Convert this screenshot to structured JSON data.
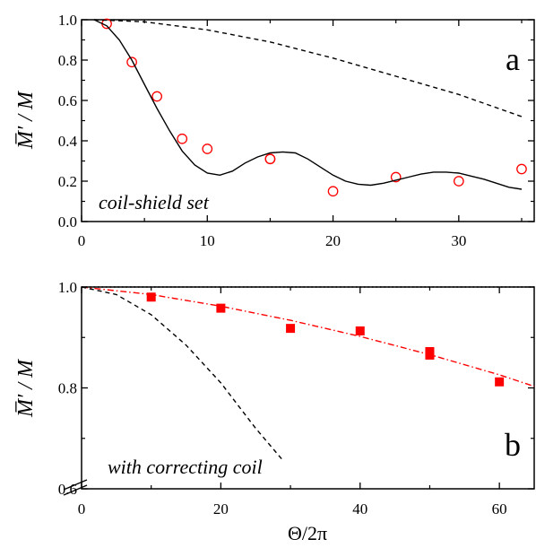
{
  "chart_data": [
    {
      "type": "scatter",
      "panel_label": "a",
      "annotation": "coil-shield set",
      "ylabel": "M̅′ / M",
      "xlabel": "",
      "xlim": [
        0,
        36
      ],
      "ylim": [
        0,
        1.0
      ],
      "x_ticks": [
        0,
        10,
        20,
        30
      ],
      "x_tick_labels": [
        "0",
        "10",
        "20",
        "30"
      ],
      "y_ticks": [
        0.0,
        0.2,
        0.4,
        0.6,
        0.8,
        1.0
      ],
      "y_tick_labels": [
        "0.0",
        "0.2",
        "0.4",
        "0.6",
        "0.8",
        "1.0"
      ],
      "grid": false,
      "series": [
        {
          "style": "open-circle",
          "color": "#ff0000",
          "x": [
            2,
            4,
            6,
            8,
            10,
            15,
            15,
            20,
            25,
            30,
            35
          ],
          "y": [
            0.98,
            0.79,
            0.62,
            0.41,
            0.36,
            0.31,
            0.31,
            0.15,
            0.22,
            0.2,
            0.26
          ]
        },
        {
          "style": "solid-line",
          "color": "#000000",
          "x": [
            1,
            2,
            3,
            4,
            5,
            6,
            7,
            8,
            9,
            10,
            11,
            12,
            13,
            14,
            15,
            16,
            17,
            18,
            19,
            20,
            21,
            22,
            23,
            24,
            25,
            26,
            27,
            28,
            29,
            30,
            31,
            32,
            33,
            34,
            35
          ],
          "y": [
            1.0,
            0.97,
            0.9,
            0.8,
            0.68,
            0.56,
            0.45,
            0.35,
            0.28,
            0.24,
            0.23,
            0.25,
            0.29,
            0.32,
            0.34,
            0.345,
            0.34,
            0.31,
            0.27,
            0.23,
            0.2,
            0.185,
            0.18,
            0.19,
            0.205,
            0.22,
            0.235,
            0.245,
            0.245,
            0.24,
            0.225,
            0.21,
            0.19,
            0.17,
            0.16
          ]
        },
        {
          "style": "dashed-line",
          "color": "#000000",
          "x": [
            1,
            5,
            10,
            15,
            20,
            25,
            30,
            35
          ],
          "y": [
            1.0,
            0.99,
            0.95,
            0.89,
            0.81,
            0.72,
            0.63,
            0.52
          ]
        }
      ]
    },
    {
      "type": "scatter",
      "panel_label": "b",
      "annotation": "with correcting coil",
      "ylabel": "M̅′ / M",
      "xlabel": "Θ/2π",
      "xlim": [
        0,
        65
      ],
      "ylim": [
        0.6,
        1.0
      ],
      "x_ticks": [
        0,
        20,
        40,
        60
      ],
      "x_tick_labels": [
        "0",
        "20",
        "40",
        "60"
      ],
      "y_ticks": [
        0.6,
        0.8,
        1.0
      ],
      "y_tick_labels": [
        "0.6",
        "0.8",
        "1.0"
      ],
      "grid": false,
      "series": [
        {
          "style": "filled-square",
          "color": "#ff0000",
          "x": [
            10,
            20,
            30,
            40,
            50,
            50,
            60
          ],
          "y": [
            0.98,
            0.958,
            0.918,
            0.913,
            0.872,
            0.865,
            0.812
          ]
        },
        {
          "style": "dash-dot-line",
          "color": "#ff0000",
          "x": [
            0,
            10,
            20,
            30,
            40,
            50,
            60,
            65
          ],
          "y": [
            1.0,
            0.985,
            0.962,
            0.934,
            0.902,
            0.866,
            0.826,
            0.803
          ]
        },
        {
          "style": "dotted-line",
          "color": "#000000",
          "x": [
            0,
            65
          ],
          "y": [
            1.0,
            1.0
          ]
        },
        {
          "style": "dashed-line",
          "color": "#000000",
          "x": [
            0,
            5,
            10,
            15,
            20,
            25,
            29
          ],
          "y": [
            1.0,
            0.985,
            0.945,
            0.885,
            0.81,
            0.72,
            0.655
          ]
        }
      ]
    }
  ]
}
